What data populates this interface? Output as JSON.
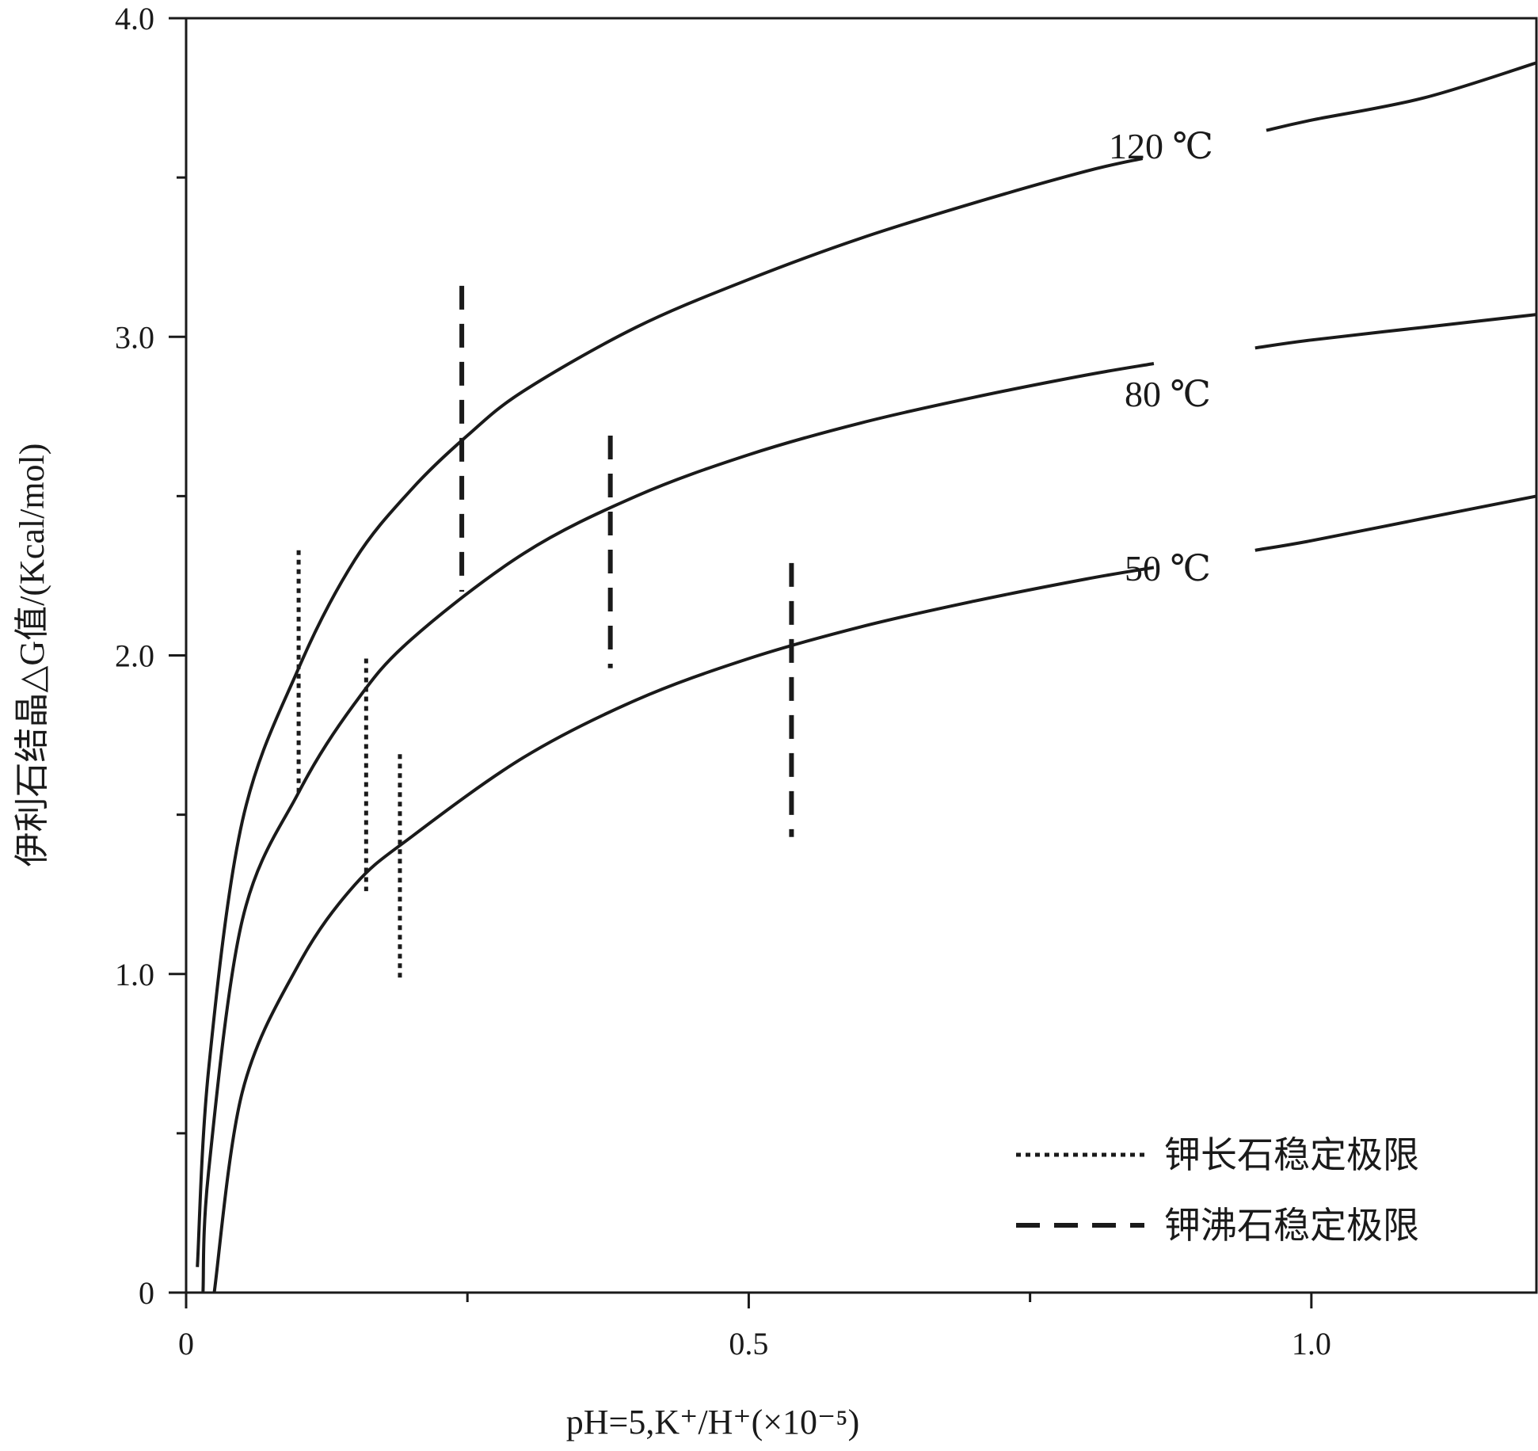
{
  "chart_data": {
    "type": "line",
    "xlabel": "pH=5,K⁺/H⁺(×10⁻⁵)",
    "ylabel": "伊利石结晶△G值/(Kcal/mol)",
    "xlim": [
      0,
      1.2
    ],
    "ylim": [
      0,
      4.0
    ],
    "x_ticks": [
      0,
      0.25,
      0.5,
      0.75,
      1.0
    ],
    "x_tick_labels": [
      "0",
      "",
      "0.5",
      "",
      "1.0"
    ],
    "y_ticks": [
      0,
      0.5,
      1.0,
      1.5,
      2.0,
      2.5,
      3.0,
      3.5,
      4.0
    ],
    "y_tick_labels": [
      "0",
      "",
      "1.0",
      "",
      "2.0",
      "",
      "3.0",
      "",
      "4.0"
    ],
    "series": [
      {
        "name": "120 ℃",
        "x": [
          0.01,
          0.02,
          0.05,
          0.1,
          0.15,
          0.2,
          0.25,
          0.3,
          0.4,
          0.5,
          0.6,
          0.7,
          0.8,
          0.9,
          1.0,
          1.1,
          1.2
        ],
        "y": [
          0.08,
          0.7,
          1.48,
          1.96,
          2.3,
          2.52,
          2.69,
          2.83,
          3.03,
          3.18,
          3.31,
          3.42,
          3.52,
          3.6,
          3.68,
          3.75,
          3.86
        ]
      },
      {
        "name": "80 ℃",
        "x": [
          0.015,
          0.02,
          0.05,
          0.1,
          0.15,
          0.2,
          0.3,
          0.4,
          0.5,
          0.6,
          0.7,
          0.8,
          0.9,
          1.0,
          1.1,
          1.2
        ],
        "y": [
          0.0,
          0.38,
          1.17,
          1.57,
          1.85,
          2.05,
          2.32,
          2.5,
          2.63,
          2.73,
          2.81,
          2.88,
          2.94,
          2.99,
          3.03,
          3.07
        ]
      },
      {
        "name": "50 ℃",
        "x": [
          0.025,
          0.05,
          0.1,
          0.15,
          0.2,
          0.3,
          0.4,
          0.5,
          0.6,
          0.7,
          0.8,
          0.9,
          1.0,
          1.1,
          1.2
        ],
        "y": [
          0.0,
          0.63,
          1.03,
          1.28,
          1.43,
          1.68,
          1.86,
          1.99,
          2.09,
          2.17,
          2.24,
          2.3,
          2.36,
          2.43,
          2.5
        ]
      }
    ],
    "stability_limits": [
      {
        "group": "钾长石稳定极限",
        "x": 0.1,
        "y_range": [
          1.57,
          2.33
        ]
      },
      {
        "group": "钾长石稳定极限",
        "x": 0.16,
        "y_range": [
          1.26,
          1.99
        ]
      },
      {
        "group": "钾长石稳定极限",
        "x": 0.19,
        "y_range": [
          0.98,
          1.69
        ]
      },
      {
        "group": "钾沸石稳定极限",
        "x": 0.245,
        "y_range": [
          2.2,
          3.16
        ]
      },
      {
        "group": "钾沸石稳定极限",
        "x": 0.377,
        "y_range": [
          1.96,
          2.69
        ]
      },
      {
        "group": "钾沸石稳定极限",
        "x": 0.538,
        "y_range": [
          1.43,
          2.29
        ]
      }
    ],
    "legend": {
      "position": "bottom-right",
      "entries": [
        {
          "label": "钾长石稳定极限",
          "style": "dotted"
        },
        {
          "label": "钾沸石稳定极限",
          "style": "dashed"
        }
      ]
    },
    "grid": false
  }
}
